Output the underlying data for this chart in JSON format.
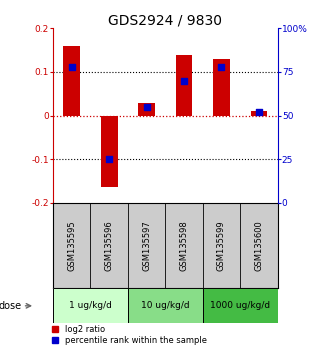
{
  "title": "GDS2924 / 9830",
  "samples": [
    "GSM135595",
    "GSM135596",
    "GSM135597",
    "GSM135598",
    "GSM135599",
    "GSM135600"
  ],
  "log2_ratios": [
    0.16,
    -0.163,
    0.03,
    0.14,
    0.13,
    0.01
  ],
  "percentile_ranks": [
    78,
    25,
    55,
    70,
    78,
    52
  ],
  "ylim_left": [
    -0.2,
    0.2
  ],
  "ylim_right": [
    0,
    100
  ],
  "yticks_left": [
    -0.2,
    -0.1,
    0.0,
    0.1,
    0.2
  ],
  "yticks_right": [
    0,
    25,
    50,
    75,
    100
  ],
  "ytick_labels_left": [
    "-0.2",
    "-0.1",
    "0",
    "0.1",
    "0.2"
  ],
  "ytick_labels_right": [
    "0",
    "25",
    "50",
    "75",
    "100%"
  ],
  "bar_color": "#cc0000",
  "dot_color": "#0000cc",
  "title_fontsize": 10,
  "groups": [
    {
      "label": "1 ug/kg/d",
      "indices": [
        0,
        1
      ],
      "color": "#ccffcc"
    },
    {
      "label": "10 ug/kg/d",
      "indices": [
        2,
        3
      ],
      "color": "#88dd88"
    },
    {
      "label": "1000 ug/kg/d",
      "indices": [
        4,
        5
      ],
      "color": "#44bb44"
    }
  ],
  "dose_label": "dose",
  "legend_red_label": "log2 ratio",
  "legend_blue_label": "percentile rank within the sample",
  "hline_color_zero": "#cc0000",
  "hline_color_grid": "#000000",
  "background_color": "#ffffff",
  "label_area_bg": "#cccccc"
}
